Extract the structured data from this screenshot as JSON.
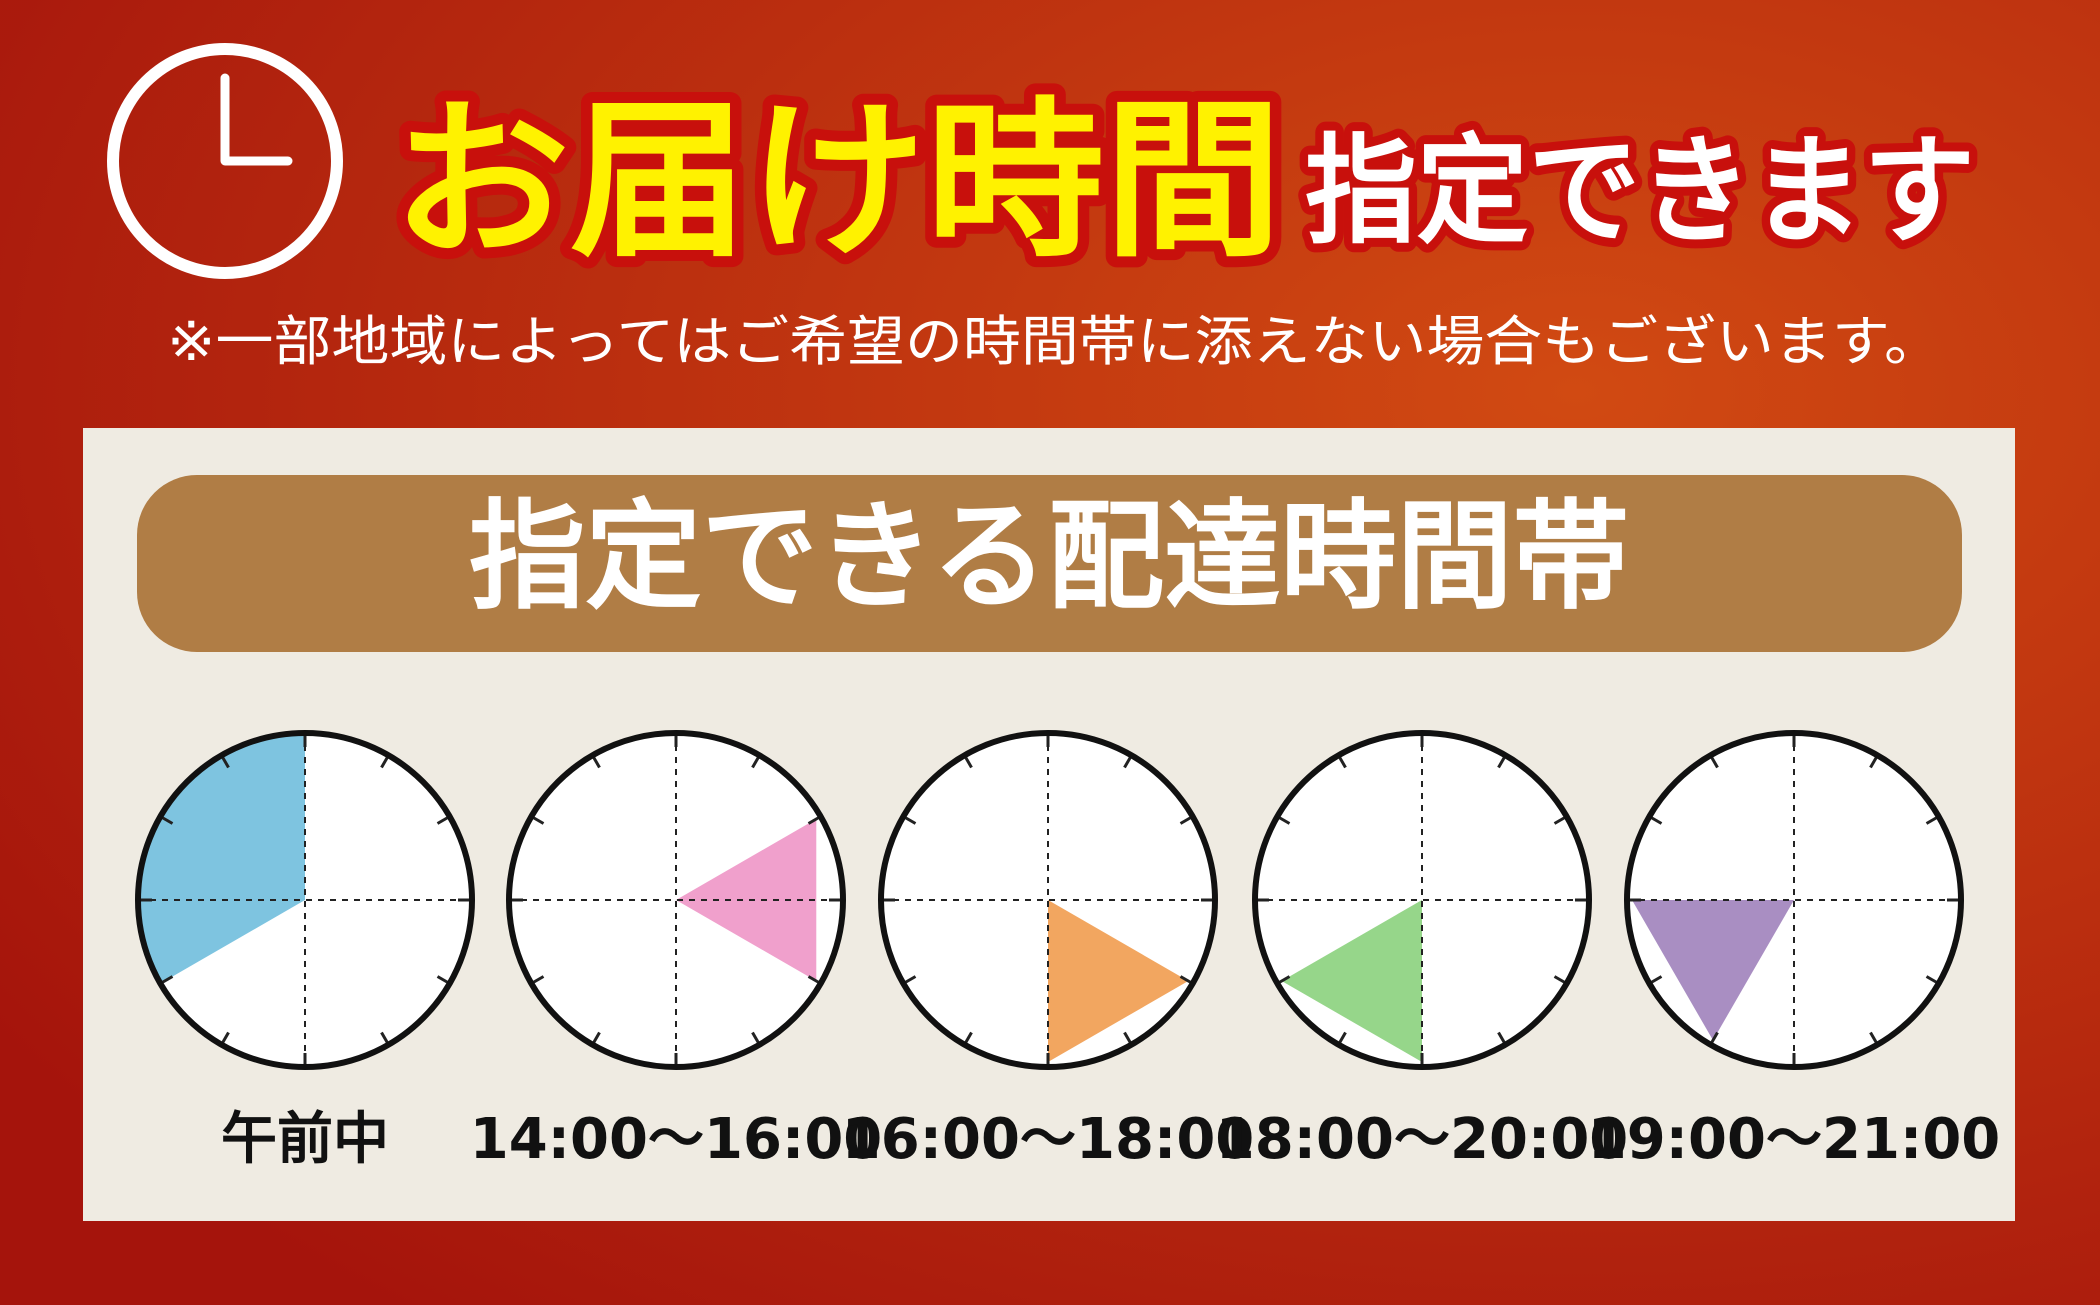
{
  "header": {
    "title_main": "お届け時間",
    "title_sub": "指定できます",
    "note": "※一部地域によってはご希望の時間帯に添えない場合もございます。"
  },
  "panel": {
    "title": "指定できる配達時間帯",
    "slots": [
      {
        "label": "午前中"
      },
      {
        "label": "14:00～16:00"
      },
      {
        "label": "16:00～18:00"
      },
      {
        "label": "18:00～20:00"
      },
      {
        "label": "19:00～21:00"
      }
    ]
  }
}
